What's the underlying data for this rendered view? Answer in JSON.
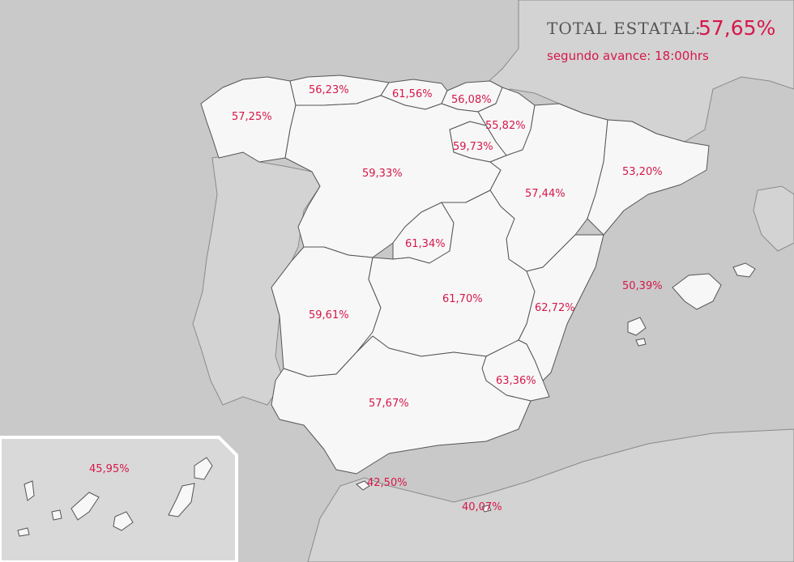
{
  "header": {
    "total_label": "TOTAL ESTATAL:",
    "total_value": "57,65%",
    "subtitle": "segundo avance: 18:00hrs"
  },
  "colors": {
    "accent": "#d6174b",
    "land": "#f7f7f7",
    "sea": "#c9c9c9",
    "neighbor": "#d3d3d3"
  },
  "regions": {
    "galicia": "57,25%",
    "asturias": "56,23%",
    "cantabria": "61,56%",
    "pais_vasco": "56,08%",
    "navarra": "55,82%",
    "la_rioja": "59,73%",
    "castilla_leon": "59,33%",
    "aragon": "57,44%",
    "cataluna": "53,20%",
    "madrid": "61,34%",
    "extremadura": "59,61%",
    "castilla_la_mancha": "61,70%",
    "valencia": "62,72%",
    "baleares": "50,39%",
    "murcia": "63,36%",
    "andalucia": "57,67%",
    "ceuta": "42,50%",
    "melilla": "40,07%",
    "canarias": "45,95%"
  }
}
